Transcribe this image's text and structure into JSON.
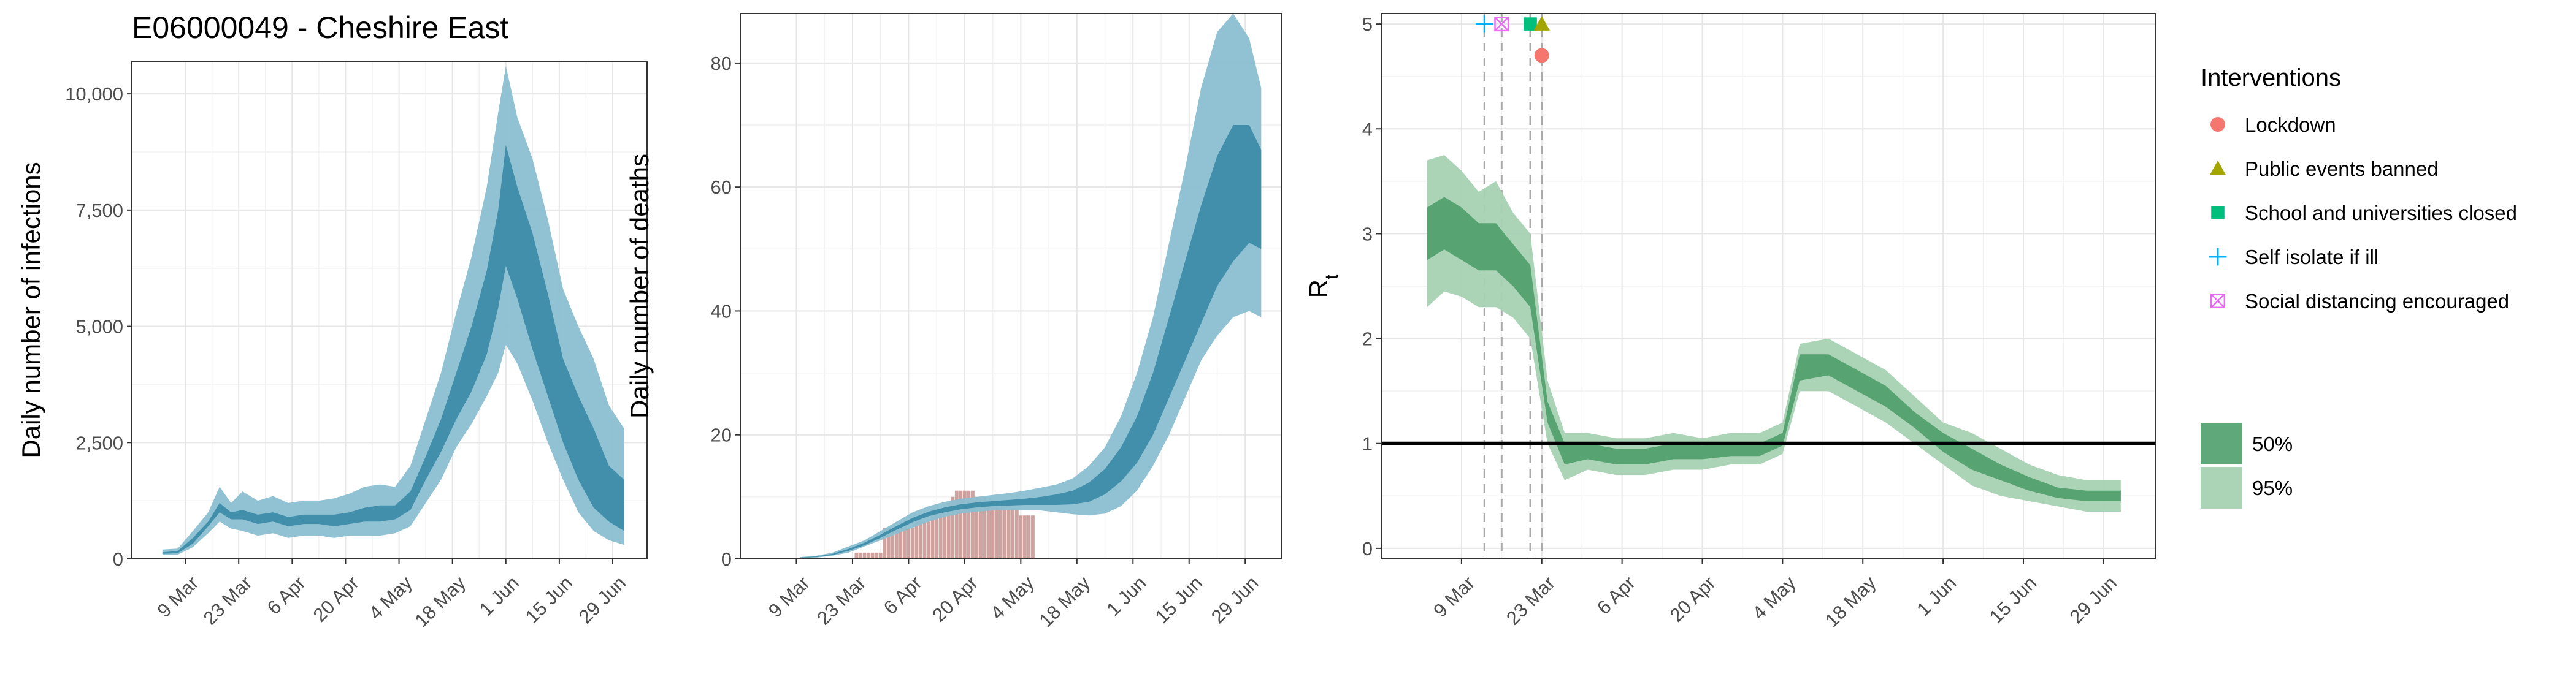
{
  "title": "E06000049 - Cheshire East",
  "colors": {
    "infections_outer": "#8bbfd1",
    "infections_inner": "#3a8aa6",
    "deaths_bars": "#c4928e",
    "rt_outer": "#a6d1b2",
    "rt_inner": "#4e9f6a",
    "lockdown": "#f4766e",
    "public_events": "#a3a500",
    "schools": "#00bf7d",
    "self_isolate": "#00b0f6",
    "social_distancing": "#e76bf3"
  },
  "icons": {
    "lockdown": "circle-icon",
    "public_events": "triangle-icon",
    "schools": "square-icon",
    "self_isolate": "plus-icon",
    "social_distancing": "crossed-box-icon"
  },
  "legend": {
    "interventions_title": "Interventions",
    "interventions": [
      "Lockdown",
      "Public events banned",
      "School and universities closed",
      "Self isolate if ill",
      "Social distancing encouraged"
    ],
    "ci": [
      "50%",
      "95%"
    ],
    "position": "right"
  },
  "chart_data": [
    {
      "type": "area",
      "title": "E06000049 - Cheshire East",
      "xlabel": "",
      "ylabel": "Daily number of infections",
      "x_tick_labels": [
        "9 Mar",
        "23 Mar",
        "6 Apr",
        "20 Apr",
        "4 May",
        "18 May",
        "1 Jun",
        "15 Jun",
        "29 Jun"
      ],
      "x_ticks": [
        "2020-03-09",
        "2020-03-23",
        "2020-04-06",
        "2020-04-20",
        "2020-05-04",
        "2020-05-18",
        "2020-06-01",
        "2020-06-15",
        "2020-06-29"
      ],
      "xlim": [
        "2020-02-24",
        "2020-07-08"
      ],
      "y_tick_labels": [
        "0",
        "2,500",
        "5,000",
        "7,500",
        "10,000"
      ],
      "y_ticks": [
        0,
        2500,
        5000,
        7500,
        10000
      ],
      "ylim": [
        0,
        10700
      ],
      "grid": true,
      "series": [
        {
          "name": "95%",
          "x": [
            "2020-03-03",
            "2020-03-07",
            "2020-03-11",
            "2020-03-15",
            "2020-03-18",
            "2020-03-21",
            "2020-03-24",
            "2020-03-28",
            "2020-04-01",
            "2020-04-05",
            "2020-04-09",
            "2020-04-13",
            "2020-04-17",
            "2020-04-21",
            "2020-04-25",
            "2020-04-29",
            "2020-05-03",
            "2020-05-07",
            "2020-05-11",
            "2020-05-15",
            "2020-05-19",
            "2020-05-23",
            "2020-05-27",
            "2020-05-30",
            "2020-06-01",
            "2020-06-04",
            "2020-06-08",
            "2020-06-12",
            "2020-06-16",
            "2020-06-20",
            "2020-06-24",
            "2020-06-28",
            "2020-07-02"
          ],
          "upper": [
            200,
            220,
            600,
            1000,
            1550,
            1200,
            1450,
            1250,
            1350,
            1200,
            1250,
            1250,
            1300,
            1400,
            1550,
            1600,
            1550,
            2000,
            3000,
            4000,
            5300,
            6500,
            8000,
            9600,
            10600,
            9500,
            8600,
            7300,
            5800,
            5000,
            4300,
            3300,
            2800
          ],
          "lower": [
            80,
            90,
            250,
            550,
            800,
            650,
            600,
            500,
            550,
            450,
            500,
            500,
            450,
            500,
            500,
            500,
            550,
            700,
            1200,
            1700,
            2400,
            2900,
            3500,
            4000,
            4600,
            4200,
            3400,
            2500,
            1700,
            1000,
            600,
            400,
            300
          ]
        },
        {
          "name": "50%",
          "x": [
            "2020-03-03",
            "2020-03-07",
            "2020-03-11",
            "2020-03-15",
            "2020-03-18",
            "2020-03-21",
            "2020-03-24",
            "2020-03-28",
            "2020-04-01",
            "2020-04-05",
            "2020-04-09",
            "2020-04-13",
            "2020-04-17",
            "2020-04-21",
            "2020-04-25",
            "2020-04-29",
            "2020-05-03",
            "2020-05-07",
            "2020-05-11",
            "2020-05-15",
            "2020-05-19",
            "2020-05-23",
            "2020-05-27",
            "2020-05-30",
            "2020-06-01",
            "2020-06-04",
            "2020-06-08",
            "2020-06-12",
            "2020-06-16",
            "2020-06-20",
            "2020-06-24",
            "2020-06-28",
            "2020-07-02"
          ],
          "upper": [
            140,
            170,
            450,
            800,
            1200,
            1000,
            1050,
            950,
            1000,
            900,
            950,
            950,
            950,
            1000,
            1100,
            1150,
            1150,
            1450,
            2200,
            3000,
            4000,
            5000,
            6200,
            7500,
            8900,
            8000,
            7000,
            5700,
            4300,
            3500,
            2800,
            2000,
            1700
          ],
          "lower": [
            110,
            120,
            330,
            700,
            1000,
            850,
            850,
            750,
            800,
            700,
            750,
            750,
            700,
            750,
            800,
            800,
            850,
            1050,
            1700,
            2300,
            3000,
            3600,
            4400,
            5400,
            6300,
            5600,
            4500,
            3500,
            2500,
            1700,
            1100,
            800,
            600
          ]
        }
      ]
    },
    {
      "type": "area",
      "title": "",
      "xlabel": "",
      "ylabel": "Daily number of deaths",
      "x_tick_labels": [
        "9 Mar",
        "23 Mar",
        "6 Apr",
        "20 Apr",
        "4 May",
        "18 May",
        "1 Jun",
        "15 Jun",
        "29 Jun"
      ],
      "x_ticks": [
        "2020-03-09",
        "2020-03-23",
        "2020-04-06",
        "2020-04-20",
        "2020-05-04",
        "2020-05-18",
        "2020-06-01",
        "2020-06-15",
        "2020-06-29"
      ],
      "xlim": [
        "2020-02-24",
        "2020-07-08"
      ],
      "y_tick_labels": [
        "0",
        "20",
        "40",
        "60",
        "80"
      ],
      "y_ticks": [
        0,
        20,
        40,
        60,
        80
      ],
      "ylim": [
        0,
        88
      ],
      "grid": true,
      "bars": {
        "x": [
          "2020-03-24",
          "2020-03-25",
          "2020-03-26",
          "2020-03-27",
          "2020-03-28",
          "2020-03-29",
          "2020-03-30",
          "2020-03-31",
          "2020-04-01",
          "2020-04-02",
          "2020-04-03",
          "2020-04-04",
          "2020-04-05",
          "2020-04-06",
          "2020-04-07",
          "2020-04-08",
          "2020-04-09",
          "2020-04-10",
          "2020-04-11",
          "2020-04-12",
          "2020-04-13",
          "2020-04-14",
          "2020-04-15",
          "2020-04-16",
          "2020-04-17",
          "2020-04-18",
          "2020-04-19",
          "2020-04-20",
          "2020-04-21",
          "2020-04-22",
          "2020-04-23",
          "2020-04-24",
          "2020-04-25",
          "2020-04-26",
          "2020-04-27",
          "2020-04-28",
          "2020-04-29",
          "2020-04-30",
          "2020-05-01",
          "2020-05-02",
          "2020-05-03",
          "2020-05-04",
          "2020-05-05",
          "2020-05-06",
          "2020-05-07"
        ],
        "values": [
          1,
          1,
          1,
          1,
          1,
          1,
          1,
          5,
          5,
          5,
          5,
          5,
          5,
          5,
          5,
          6,
          6,
          6,
          6,
          8,
          8,
          8,
          8,
          9,
          10,
          11,
          11,
          11,
          11,
          11,
          10,
          10,
          10,
          9,
          9,
          9,
          9,
          9,
          8,
          8,
          8,
          7,
          7,
          7,
          7
        ]
      },
      "series": [
        {
          "name": "95%",
          "x": [
            "2020-03-10",
            "2020-03-14",
            "2020-03-18",
            "2020-03-22",
            "2020-03-26",
            "2020-03-30",
            "2020-04-03",
            "2020-04-07",
            "2020-04-11",
            "2020-04-15",
            "2020-04-19",
            "2020-04-23",
            "2020-04-27",
            "2020-05-01",
            "2020-05-05",
            "2020-05-09",
            "2020-05-13",
            "2020-05-17",
            "2020-05-21",
            "2020-05-25",
            "2020-05-29",
            "2020-06-02",
            "2020-06-06",
            "2020-06-10",
            "2020-06-14",
            "2020-06-18",
            "2020-06-22",
            "2020-06-26",
            "2020-06-30",
            "2020-07-03"
          ],
          "upper": [
            0.3,
            0.5,
            1,
            2,
            3,
            4.5,
            6,
            7.5,
            8.5,
            9.2,
            9.7,
            10,
            10.3,
            10.6,
            11,
            11.5,
            12,
            13,
            15,
            18,
            23,
            30,
            39,
            51,
            63,
            76,
            85,
            88,
            84,
            76
          ],
          "lower": [
            0.1,
            0.2,
            0.5,
            1,
            2,
            3,
            4,
            5,
            6,
            6.8,
            7.3,
            7.6,
            7.8,
            7.9,
            7.9,
            7.8,
            7.5,
            7.2,
            7,
            7.3,
            8.5,
            11,
            15,
            20,
            26,
            32,
            36,
            39,
            40,
            39
          ]
        },
        {
          "name": "50%",
          "x": [
            "2020-03-10",
            "2020-03-14",
            "2020-03-18",
            "2020-03-22",
            "2020-03-26",
            "2020-03-30",
            "2020-04-03",
            "2020-04-07",
            "2020-04-11",
            "2020-04-15",
            "2020-04-19",
            "2020-04-23",
            "2020-04-27",
            "2020-05-01",
            "2020-05-05",
            "2020-05-09",
            "2020-05-13",
            "2020-05-17",
            "2020-05-21",
            "2020-05-25",
            "2020-05-29",
            "2020-06-02",
            "2020-06-06",
            "2020-06-10",
            "2020-06-14",
            "2020-06-18",
            "2020-06-22",
            "2020-06-26",
            "2020-06-30",
            "2020-07-03"
          ],
          "upper": [
            0.2,
            0.4,
            0.8,
            1.6,
            2.6,
            3.9,
            5.3,
            6.6,
            7.6,
            8.3,
            8.8,
            9.1,
            9.3,
            9.5,
            9.7,
            10,
            10.4,
            11,
            12.3,
            14.5,
            18,
            23,
            30,
            39,
            48,
            57,
            65,
            70,
            70,
            66
          ],
          "lower": [
            0.15,
            0.3,
            0.6,
            1.3,
            2.2,
            3.4,
            4.7,
            5.9,
            6.9,
            7.5,
            8,
            8.3,
            8.5,
            8.6,
            8.7,
            8.7,
            8.7,
            8.8,
            9.2,
            10.4,
            12.5,
            15.5,
            20,
            26,
            32,
            38,
            44,
            48,
            51,
            50
          ]
        }
      ]
    },
    {
      "type": "area",
      "title": "",
      "xlabel": "",
      "ylabel": "R",
      "ylabel_subscript": "t",
      "x_tick_labels": [
        "9 Mar",
        "23 Mar",
        "6 Apr",
        "20 Apr",
        "4 May",
        "18 May",
        "1 Jun",
        "15 Jun",
        "29 Jun"
      ],
      "x_ticks": [
        "2020-03-09",
        "2020-03-23",
        "2020-04-06",
        "2020-04-20",
        "2020-05-04",
        "2020-05-18",
        "2020-06-01",
        "2020-06-15",
        "2020-06-29"
      ],
      "xlim": [
        "2020-02-24",
        "2020-07-08"
      ],
      "y_tick_labels": [
        "0",
        "1",
        "2",
        "3",
        "4",
        "5"
      ],
      "y_ticks": [
        0,
        1,
        2,
        3,
        4,
        5
      ],
      "ylim": [
        -0.1,
        5.1
      ],
      "grid": true,
      "reference_line": 1,
      "intervention_dates": [
        "2020-03-13",
        "2020-03-16",
        "2020-03-21",
        "2020-03-23"
      ],
      "interventions": [
        {
          "name": "Self isolate if ill",
          "date": "2020-03-13",
          "y": 5
        },
        {
          "name": "Social distancing encouraged",
          "date": "2020-03-16",
          "y": 5
        },
        {
          "name": "School and universities closed",
          "date": "2020-03-21",
          "y": 5
        },
        {
          "name": "Public events banned",
          "date": "2020-03-23",
          "y": 5
        },
        {
          "name": "Lockdown",
          "date": "2020-03-23",
          "y": 4.7
        }
      ],
      "series": [
        {
          "name": "95%",
          "x": [
            "2020-03-03",
            "2020-03-06",
            "2020-03-09",
            "2020-03-12",
            "2020-03-15",
            "2020-03-18",
            "2020-03-21",
            "2020-03-24",
            "2020-03-27",
            "2020-03-31",
            "2020-04-05",
            "2020-04-10",
            "2020-04-15",
            "2020-04-20",
            "2020-04-25",
            "2020-04-30",
            "2020-05-04",
            "2020-05-07",
            "2020-05-12",
            "2020-05-17",
            "2020-05-22",
            "2020-05-27",
            "2020-06-01",
            "2020-06-06",
            "2020-06-11",
            "2020-06-16",
            "2020-06-21",
            "2020-06-26",
            "2020-07-02"
          ],
          "upper": [
            3.7,
            3.75,
            3.6,
            3.4,
            3.5,
            3.2,
            3.0,
            1.6,
            1.1,
            1.1,
            1.05,
            1.05,
            1.1,
            1.05,
            1.1,
            1.1,
            1.2,
            1.95,
            2.0,
            1.85,
            1.7,
            1.45,
            1.2,
            1.1,
            0.95,
            0.8,
            0.7,
            0.65,
            0.65
          ],
          "lower": [
            2.3,
            2.45,
            2.4,
            2.3,
            2.3,
            2.2,
            2.0,
            1.0,
            0.65,
            0.75,
            0.7,
            0.7,
            0.75,
            0.75,
            0.8,
            0.8,
            0.9,
            1.5,
            1.5,
            1.35,
            1.2,
            1.0,
            0.8,
            0.6,
            0.5,
            0.45,
            0.4,
            0.35,
            0.35
          ]
        },
        {
          "name": "50%",
          "x": [
            "2020-03-03",
            "2020-03-06",
            "2020-03-09",
            "2020-03-12",
            "2020-03-15",
            "2020-03-18",
            "2020-03-21",
            "2020-03-24",
            "2020-03-27",
            "2020-03-31",
            "2020-04-05",
            "2020-04-10",
            "2020-04-15",
            "2020-04-20",
            "2020-04-25",
            "2020-04-30",
            "2020-05-04",
            "2020-05-07",
            "2020-05-12",
            "2020-05-17",
            "2020-05-22",
            "2020-05-27",
            "2020-06-01",
            "2020-06-06",
            "2020-06-11",
            "2020-06-16",
            "2020-06-21",
            "2020-06-26",
            "2020-07-02"
          ],
          "upper": [
            3.25,
            3.35,
            3.25,
            3.1,
            3.1,
            2.9,
            2.7,
            1.4,
            1.0,
            1.0,
            0.95,
            0.95,
            1.0,
            0.98,
            1.0,
            1.0,
            1.1,
            1.85,
            1.85,
            1.7,
            1.55,
            1.3,
            1.1,
            0.95,
            0.8,
            0.68,
            0.58,
            0.55,
            0.55
          ],
          "lower": [
            2.75,
            2.85,
            2.75,
            2.65,
            2.65,
            2.5,
            2.3,
            1.2,
            0.8,
            0.85,
            0.8,
            0.8,
            0.85,
            0.85,
            0.88,
            0.88,
            0.98,
            1.6,
            1.65,
            1.5,
            1.35,
            1.15,
            0.92,
            0.75,
            0.65,
            0.55,
            0.48,
            0.45,
            0.45
          ]
        }
      ]
    }
  ]
}
